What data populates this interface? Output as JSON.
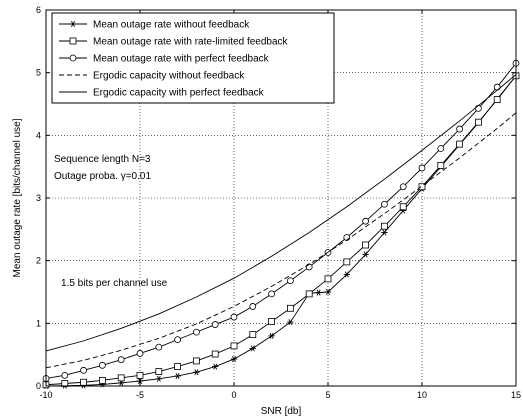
{
  "chart_data": {
    "type": "line",
    "title": "",
    "xlabel": "SNR [db]",
    "ylabel": "Mean outage rate [bits/channel use]",
    "xlim": [
      -10,
      15
    ],
    "ylim": [
      0,
      6
    ],
    "xticks": [
      -10,
      -5,
      0,
      5,
      10,
      15
    ],
    "yticks": [
      0,
      1,
      2,
      3,
      4,
      5,
      6
    ],
    "grid": true,
    "grid_style": "dotted",
    "legend_position": "top-left",
    "annotations": [
      {
        "text": "Sequence length N=3"
      },
      {
        "text": "Outage proba. γ=0.01"
      },
      {
        "text": "1.5 bits per channel use"
      }
    ],
    "series": [
      {
        "name": "Mean outage rate without feedback",
        "marker": "asterisk",
        "line": "solid",
        "x": [
          -10,
          -9,
          -8,
          -7,
          -6,
          -5,
          -4,
          -3,
          -2,
          -1,
          0,
          1,
          2,
          3,
          4,
          4.5,
          5,
          6,
          7,
          8,
          9,
          10,
          11,
          12,
          13,
          14,
          15
        ],
        "y": [
          0.0,
          0.005,
          0.01,
          0.025,
          0.05,
          0.08,
          0.115,
          0.16,
          0.22,
          0.31,
          0.43,
          0.6,
          0.8,
          1.02,
          1.48,
          1.49,
          1.5,
          1.78,
          2.1,
          2.45,
          2.8,
          3.15,
          3.5,
          3.85,
          4.2,
          4.58,
          4.95
        ]
      },
      {
        "name": "Mean outage rate with rate-limited feedback",
        "marker": "square",
        "line": "solid",
        "x": [
          -10,
          -9,
          -8,
          -7,
          -6,
          -5,
          -4,
          -3,
          -2,
          -1,
          0,
          1,
          2,
          3,
          4,
          5,
          6,
          7,
          8,
          9,
          10,
          11,
          12,
          13,
          14,
          15
        ],
        "y": [
          0.02,
          0.04,
          0.06,
          0.09,
          0.13,
          0.17,
          0.23,
          0.31,
          0.4,
          0.51,
          0.64,
          0.82,
          1.03,
          1.24,
          1.47,
          1.71,
          1.98,
          2.25,
          2.55,
          2.86,
          3.18,
          3.52,
          3.86,
          4.21,
          4.57,
          4.95
        ]
      },
      {
        "name": "Mean outage rate with perfect feedback",
        "marker": "circle",
        "line": "solid",
        "x": [
          -10,
          -9,
          -8,
          -7,
          -6,
          -5,
          -4,
          -3,
          -2,
          -1,
          0,
          1,
          2,
          3,
          4,
          5,
          6,
          7,
          8,
          9,
          10,
          11,
          12,
          13,
          14,
          15
        ],
        "y": [
          0.12,
          0.17,
          0.25,
          0.33,
          0.42,
          0.52,
          0.62,
          0.74,
          0.86,
          0.98,
          1.1,
          1.27,
          1.47,
          1.68,
          1.9,
          2.13,
          2.37,
          2.63,
          2.9,
          3.18,
          3.48,
          3.79,
          4.1,
          4.43,
          4.77,
          5.15
        ]
      },
      {
        "name": "Ergodic capacity without feedback",
        "marker": "none",
        "line": "dashed",
        "x": [
          -10,
          -8,
          -6,
          -4,
          -2,
          0,
          2,
          4,
          6,
          8,
          10,
          12,
          14,
          15
        ],
        "y": [
          0.29,
          0.41,
          0.57,
          0.76,
          0.99,
          1.27,
          1.59,
          1.94,
          2.33,
          2.75,
          3.19,
          3.64,
          4.11,
          4.36
        ]
      },
      {
        "name": "Ergodic capacity with perfect feedback",
        "marker": "none",
        "line": "solid",
        "x": [
          -10,
          -8,
          -6,
          -4,
          -2,
          0,
          2,
          4,
          6,
          8,
          10,
          12,
          14,
          15
        ],
        "y": [
          0.56,
          0.72,
          0.92,
          1.15,
          1.42,
          1.72,
          2.07,
          2.45,
          2.86,
          3.3,
          3.76,
          4.23,
          4.72,
          4.97
        ]
      }
    ]
  }
}
